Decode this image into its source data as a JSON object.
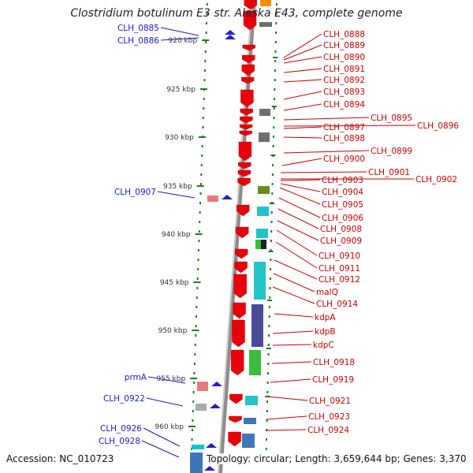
{
  "header": {
    "title": "Clostridium botulinum E3 str. Alaska E43, complete genome"
  },
  "footer": {
    "accession": "Accession: NC_010723",
    "topology": "Topology: circular; Length: 3,659,644 bp; Genes: 3,370"
  },
  "ticks": [
    "920 kbp",
    "925 kbp",
    "930 kbp",
    "935 kbp",
    "940 kbp",
    "945 kbp",
    "950 kbp",
    "955 kbp",
    "960 kbp"
  ],
  "left_labels": [
    "CLH_0885",
    "CLH_0886",
    "CLH_0907",
    "prmA",
    "CLH_0922",
    "CLH_0926",
    "CLH_0928"
  ],
  "right_labels": [
    "CLH_0888",
    "CLH_0889",
    "CLH_0890",
    "CLH_0891",
    "CLH_0892",
    "CLH_0893",
    "CLH_0894",
    "CLH_0895",
    "CLH_0896",
    "CLH_0897",
    "CLH_0898",
    "CLH_0899",
    "CLH_0900",
    "CLH_0901",
    "CLH_0902",
    "CLH_0903",
    "CLH_0904",
    "CLH_0905",
    "CLH_0906",
    "CLH_0908",
    "CLH_0909",
    "CLH_0910",
    "CLH_0911",
    "CLH_0912",
    "malQ",
    "CLH_0914",
    "kdpA",
    "kdpB",
    "kdpC",
    "CLH_0918",
    "CLH_0919",
    "CLH_0921",
    "CLH_0923",
    "CLH_0924"
  ],
  "colors": {
    "forward_gene": "#1f1fd6",
    "reverse_gene": "#e8000a",
    "left_label": "#1a1acc",
    "right_label": "#cc0000",
    "backbone": "#8c8c8c",
    "tick_dots": "#1e7a1e",
    "cog_cyan": "#22c4c8",
    "cog_purple": "#4a4a96",
    "cog_green": "#3cbb3c",
    "cog_olive": "#6b8a1e",
    "cog_gray": "#6e6e6e",
    "cog_pink": "#e87a7a",
    "cog_blue": "#3c78b8"
  }
}
